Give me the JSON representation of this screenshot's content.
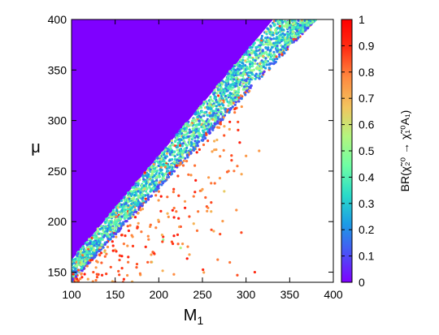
{
  "chart_data": {
    "type": "scatter",
    "title": "",
    "xlabel": "M",
    "xlabel_sub": "1",
    "ylabel": "μ",
    "xlim": [
      100,
      400
    ],
    "ylim": [
      140,
      400
    ],
    "x_ticks": [
      100,
      150,
      200,
      250,
      300,
      350,
      400
    ],
    "y_ticks": [
      150,
      200,
      250,
      300,
      350,
      400
    ],
    "colorbar": {
      "label": "BR(χ̃₂⁰ → χ̃₁⁰A₁)",
      "range": [
        0,
        1
      ],
      "ticks": [
        0,
        0.1,
        0.2,
        0.3,
        0.4,
        0.5,
        0.6,
        0.7,
        0.8,
        0.9,
        1
      ],
      "tick_labels": [
        "0",
        "0.1",
        "0.2",
        "0.3",
        "0.4",
        "0.5",
        "0.6",
        "0.7",
        "0.8",
        "0.9",
        "1"
      ],
      "colormap": [
        "#7f00ff",
        "#4a52f5",
        "#1c9ce5",
        "#2adcc8",
        "#6ffea4",
        "#b4f57e",
        "#f2c45e",
        "#ff8a40",
        "#ff2f14",
        "#ff0000"
      ]
    },
    "filled_region": {
      "description_value": 0,
      "color": "#7f00ff",
      "boundary": [
        [
          100,
          400
        ],
        [
          331,
          400
        ],
        [
          100,
          162
        ]
      ]
    },
    "series": [
      {
        "band": "main",
        "lower_edge": [
          [
            100,
            140
          ],
          [
            380,
            400
          ]
        ],
        "upper_edge": [
          [
            100,
            162
          ],
          [
            331,
            400
          ]
        ],
        "value_trend": "mixed 0.1-0.6, purple/blue on lower edge"
      },
      {
        "band": "sparse",
        "points": [
          [
            102,
            148,
            0.9
          ],
          [
            108,
            152,
            0.85
          ],
          [
            112,
            145,
            0.9
          ],
          [
            118,
            156,
            0.8
          ],
          [
            125,
            150,
            0.85
          ],
          [
            130,
            160,
            0.75
          ],
          [
            135,
            147,
            0.9
          ],
          [
            140,
            168,
            0.8
          ],
          [
            145,
            155,
            0.85
          ],
          [
            150,
            172,
            0.7
          ],
          [
            155,
            162,
            0.85
          ],
          [
            160,
            178,
            0.8
          ],
          [
            165,
            165,
            0.9
          ],
          [
            170,
            185,
            0.75
          ],
          [
            175,
            158,
            0.85
          ],
          [
            180,
            190,
            0.8
          ],
          [
            185,
            175,
            0.9
          ],
          [
            190,
            195,
            0.75
          ],
          [
            195,
            168,
            0.85
          ],
          [
            200,
            200,
            0.8
          ],
          [
            205,
            185,
            0.9
          ],
          [
            210,
            208,
            0.7
          ],
          [
            215,
            180,
            0.85
          ],
          [
            220,
            210,
            0.8
          ],
          [
            225,
            195,
            0.9
          ],
          [
            230,
            220,
            0.75
          ],
          [
            235,
            205,
            0.85
          ],
          [
            240,
            225,
            0.8
          ],
          [
            245,
            210,
            0.8
          ],
          [
            250,
            232,
            0.75
          ],
          [
            255,
            215,
            0.85
          ],
          [
            260,
            238,
            0.8
          ],
          [
            270,
            243,
            0.75
          ],
          [
            280,
            250,
            0.8
          ],
          [
            290,
            255,
            0.8
          ],
          [
            300,
            265,
            0.75
          ],
          [
            310,
            150,
            0.9
          ],
          [
            290,
            147,
            0.85
          ],
          [
            240,
            198,
            0.7
          ],
          [
            205,
            182,
            0.5
          ],
          [
            170,
            205,
            0.6
          ],
          [
            150,
            140,
            0.85
          ],
          [
            128,
            142,
            0.8
          ],
          [
            160,
            143,
            0.9
          ],
          [
            138,
            170,
            0.6
          ],
          [
            225,
            174,
            0.55
          ],
          [
            192,
            160,
            0.6
          ],
          [
            260,
            210,
            0.7
          ],
          [
            275,
            230,
            0.65
          ],
          [
            315,
            270,
            0.75
          ]
        ]
      }
    ]
  }
}
